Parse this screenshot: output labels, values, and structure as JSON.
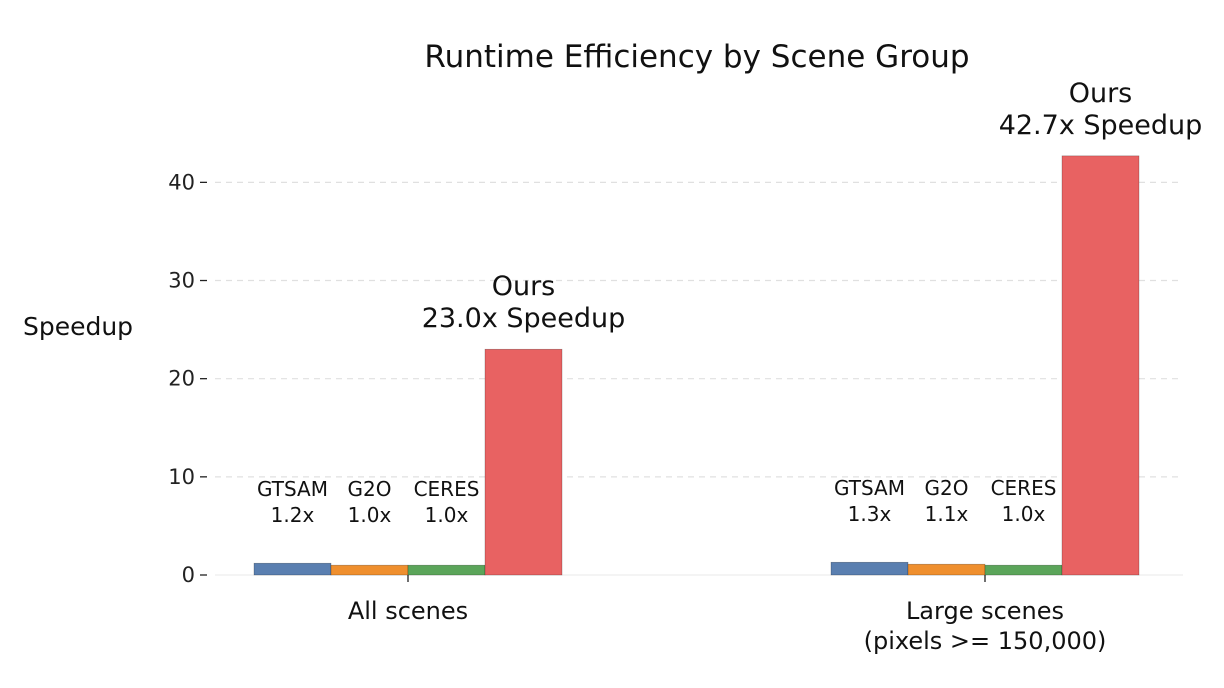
{
  "chart_data": {
    "type": "bar",
    "title": "Runtime Efficiency by Scene Group",
    "xlabel": "",
    "ylabel": "Speedup",
    "ylim": [
      0,
      43.5
    ],
    "yticks": [
      0,
      10,
      20,
      30,
      40
    ],
    "grid": true,
    "legend": "none",
    "categories": [
      {
        "lines": [
          "All scenes"
        ]
      },
      {
        "lines": [
          "Large scenes",
          "(pixels >= 150,000)"
        ]
      }
    ],
    "series": [
      {
        "name": "GTSAM",
        "color": "#5a7fb0",
        "values": [
          1.2,
          1.3
        ],
        "labels": [
          "1.2x",
          "1.3x"
        ]
      },
      {
        "name": "G2O",
        "color": "#ef8f2e",
        "values": [
          1.0,
          1.1
        ],
        "labels": [
          "1.0x",
          "1.1x"
        ]
      },
      {
        "name": "CERES",
        "color": "#5ba55a",
        "values": [
          1.0,
          1.0
        ],
        "labels": [
          "1.0x",
          "1.0x"
        ]
      },
      {
        "name": "Ours",
        "color": "#e86262",
        "values": [
          23.0,
          42.7
        ],
        "labels": [
          "23.0x Speedup",
          "42.7x Speedup"
        ]
      }
    ]
  }
}
